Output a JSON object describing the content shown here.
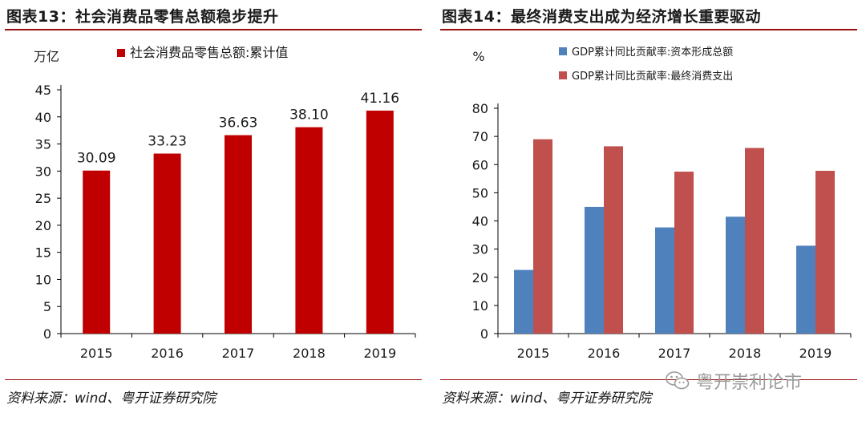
{
  "watermark": {
    "text": "粤开崇利论市",
    "icon": "wechat-icon"
  },
  "charts": [
    {
      "figure_title": "图表13：社会消费品零售总额稳步提升",
      "source": "资料来源：wind、粤开证券研究院"
    },
    {
      "figure_title": "图表14：最终消费支出成为经济增长重要驱动",
      "source": "资料来源：wind、粤开证券研究院"
    }
  ],
  "chart_data": [
    {
      "type": "bar",
      "categories": [
        "2015",
        "2016",
        "2017",
        "2018",
        "2019"
      ],
      "series": [
        {
          "name": "社会消费品零售总额:累计值",
          "values": [
            30.09,
            33.23,
            36.63,
            38.1,
            41.16
          ],
          "color": "#c00000"
        }
      ],
      "data_labels": [
        "30.09",
        "33.23",
        "36.63",
        "38.10",
        "41.16"
      ],
      "ylabel": "万亿",
      "ylim": [
        0,
        45
      ],
      "yticks": [
        0,
        5,
        10,
        15,
        20,
        25,
        30,
        35,
        40,
        45
      ],
      "legend_position": "top",
      "grid": false
    },
    {
      "type": "bar",
      "categories": [
        "2015",
        "2016",
        "2017",
        "2018",
        "2019"
      ],
      "series": [
        {
          "name": "GDP累计同比贡献率:资本形成总额",
          "values": [
            22.6,
            45.0,
            37.7,
            41.5,
            31.2
          ],
          "color": "#4f81bd"
        },
        {
          "name": "GDP累计同比贡献率:最终消费支出",
          "values": [
            69.0,
            66.5,
            57.5,
            65.9,
            57.8
          ],
          "color": "#c0504d"
        }
      ],
      "ylabel": "%",
      "ylim": [
        0,
        80
      ],
      "yticks": [
        0,
        10,
        20,
        30,
        40,
        50,
        60,
        70,
        80
      ],
      "legend_position": "top",
      "grid": false
    }
  ]
}
